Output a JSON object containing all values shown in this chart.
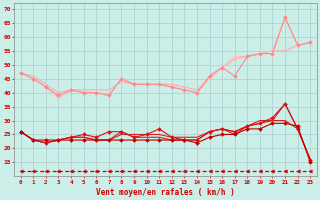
{
  "background_color": "#cceee8",
  "grid_color": "#aacccc",
  "xlabel": "Vent moyen/en rafales ( km/h )",
  "xlabel_color": "#cc0000",
  "tick_color": "#cc0000",
  "xlim": [
    -0.5,
    23.5
  ],
  "ylim": [
    10,
    72
  ],
  "yticks": [
    15,
    20,
    25,
    30,
    35,
    40,
    45,
    50,
    55,
    60,
    65,
    70
  ],
  "xticks": [
    0,
    1,
    2,
    3,
    4,
    5,
    6,
    7,
    8,
    9,
    10,
    11,
    12,
    13,
    14,
    15,
    16,
    17,
    18,
    19,
    20,
    21,
    22,
    23
  ],
  "series": [
    {
      "color": "#ffaaaa",
      "linewidth": 0.8,
      "marker": null,
      "data": [
        47,
        46,
        43,
        40,
        41,
        41,
        41,
        41,
        44,
        43,
        43,
        43,
        43,
        42,
        41,
        45,
        49,
        52,
        53,
        54,
        55,
        55,
        57,
        58
      ]
    },
    {
      "color": "#ffbbbb",
      "linewidth": 0.8,
      "marker": null,
      "data": [
        47,
        45,
        42,
        38,
        41,
        40,
        40,
        39,
        45,
        43,
        43,
        43,
        42,
        41,
        40,
        45,
        49,
        53,
        53,
        54,
        55,
        67,
        57,
        58
      ]
    },
    {
      "color": "#ff8888",
      "linewidth": 0.8,
      "marker": "D",
      "markersize": 2.0,
      "data": [
        47,
        45,
        42,
        39,
        41,
        40,
        40,
        39,
        45,
        43,
        43,
        43,
        42,
        41,
        40,
        46,
        49,
        46,
        53,
        54,
        54,
        67,
        57,
        58
      ]
    },
    {
      "color": "#cc2222",
      "linewidth": 0.8,
      "marker": null,
      "data": [
        26,
        23,
        22,
        23,
        24,
        24,
        23,
        23,
        26,
        24,
        24,
        24,
        23,
        23,
        23,
        26,
        27,
        25,
        28,
        30,
        30,
        36,
        27,
        16
      ]
    },
    {
      "color": "#cc2222",
      "linewidth": 0.8,
      "marker": null,
      "data": [
        26,
        23,
        22,
        23,
        24,
        24,
        23,
        23,
        25,
        25,
        25,
        25,
        24,
        24,
        24,
        26,
        27,
        26,
        28,
        29,
        30,
        30,
        27,
        16
      ]
    },
    {
      "color": "#dd1111",
      "linewidth": 0.8,
      "marker": "D",
      "markersize": 2.0,
      "data": [
        26,
        23,
        22,
        23,
        24,
        25,
        24,
        26,
        26,
        24,
        25,
        27,
        24,
        23,
        23,
        26,
        27,
        26,
        28,
        29,
        31,
        36,
        27,
        16
      ]
    },
    {
      "color": "#bb0000",
      "linewidth": 0.8,
      "marker": "D",
      "markersize": 2.0,
      "data": [
        26,
        23,
        23,
        23,
        23,
        23,
        23,
        23,
        23,
        23,
        23,
        23,
        23,
        23,
        22,
        24,
        25,
        25,
        27,
        27,
        29,
        29,
        28,
        15
      ]
    },
    {
      "color": "#cc0000",
      "linewidth": 0.9,
      "marker": "<",
      "markersize": 2.5,
      "dashes": [
        3,
        2
      ],
      "data": [
        12,
        12,
        12,
        12,
        12,
        12,
        12,
        12,
        12,
        12,
        12,
        12,
        12,
        12,
        12,
        12,
        12,
        12,
        12,
        12,
        12,
        12,
        12,
        12
      ]
    }
  ]
}
